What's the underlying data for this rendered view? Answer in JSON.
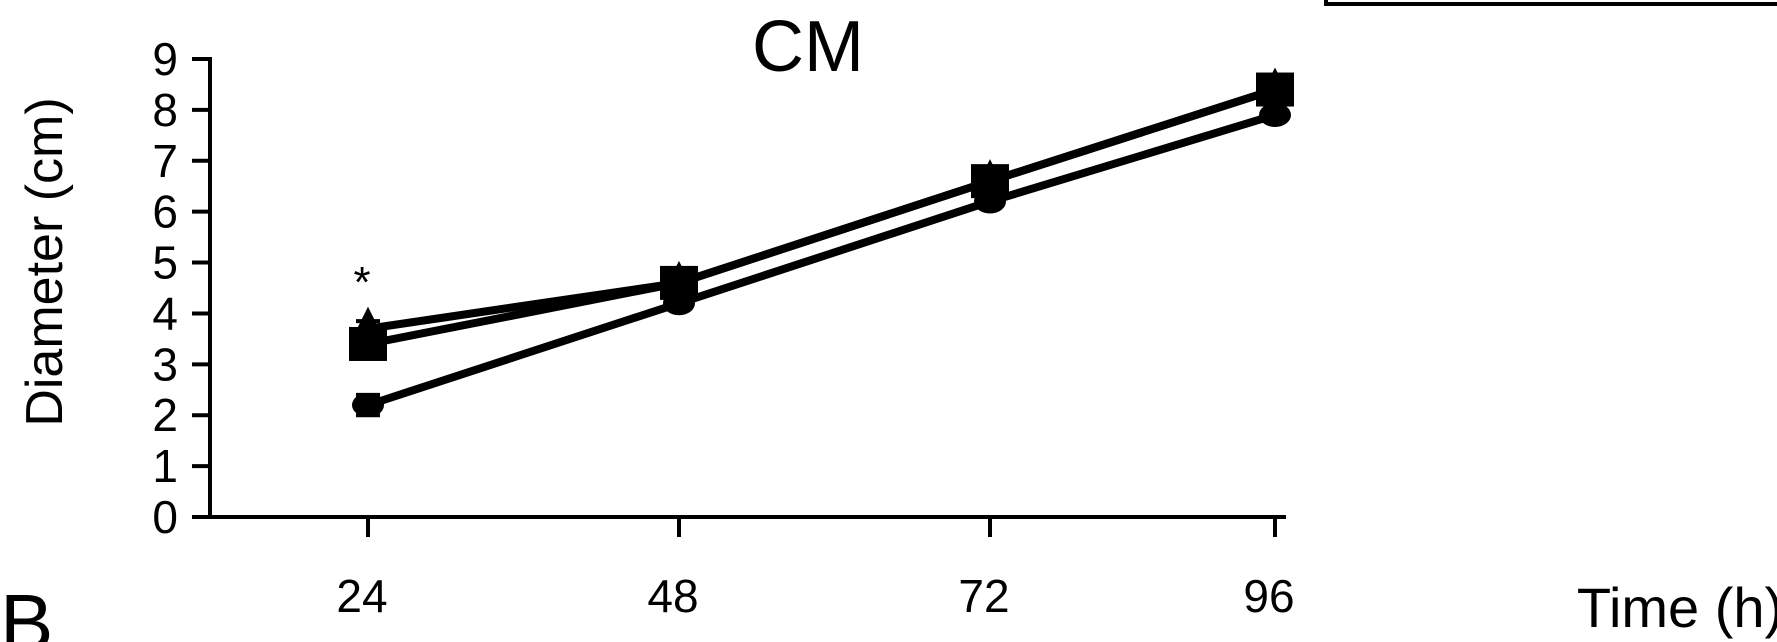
{
  "panel_letter": "B",
  "chart_data": {
    "type": "line",
    "title": "CM",
    "xlabel": "Time (h)",
    "ylabel": "Diameter (cm)",
    "categories": [
      "24",
      "48",
      "72",
      "96"
    ],
    "y_ticks": [
      "0",
      "1",
      "2",
      "3",
      "4",
      "5",
      "6",
      "7",
      "8",
      "9"
    ],
    "ylim": [
      0,
      9
    ],
    "grid": false,
    "legend": "none",
    "series": [
      {
        "marker": "triangle",
        "values": [
          3.7,
          4.6,
          6.6,
          8.4
        ],
        "errors": [
          0.15,
          0.1,
          0.1,
          0.1
        ]
      },
      {
        "marker": "square",
        "values": [
          3.4,
          4.6,
          6.6,
          8.4
        ],
        "errors": [
          0.15,
          0.1,
          0.1,
          0.1
        ]
      },
      {
        "marker": "circle",
        "values": [
          2.2,
          4.2,
          6.2,
          7.9
        ],
        "errors": [
          0.2,
          0.1,
          0.1,
          0.1
        ]
      }
    ],
    "annotations": [
      {
        "text": "*",
        "category": "24"
      }
    ],
    "colors": {
      "series": "#000000",
      "axis": "#000000"
    }
  }
}
